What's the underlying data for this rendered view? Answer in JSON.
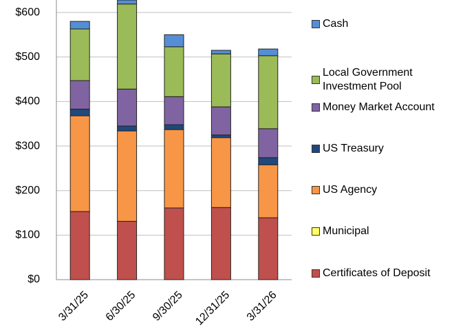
{
  "chart_data": {
    "type": "stacked_bar",
    "categories": [
      "3/31/25",
      "6/30/25",
      "9/30/25",
      "12/31/25",
      "3/31/26"
    ],
    "series": [
      {
        "name": "Certificates of Deposit",
        "color": "#c0504d",
        "values": [
          153,
          131,
          161,
          162,
          139
        ]
      },
      {
        "name": "Municipal",
        "color": "#ffff66",
        "values": [
          0,
          0,
          0,
          0,
          0
        ]
      },
      {
        "name": "US Agency",
        "color": "#f79646",
        "values": [
          215,
          203,
          176,
          157,
          119
        ]
      },
      {
        "name": "US Treasury",
        "color": "#1f497d",
        "values": [
          15,
          11,
          11,
          6,
          16
        ]
      },
      {
        "name": "Money Market Account",
        "color": "#8064a2",
        "values": [
          64,
          83,
          63,
          63,
          65
        ]
      },
      {
        "name": "Local Government Investment Pool",
        "color": "#9bbb59",
        "values": [
          116,
          191,
          112,
          119,
          164
        ]
      },
      {
        "name": "Cash",
        "color": "#558ed5",
        "values": [
          17,
          9,
          27,
          8,
          15
        ]
      }
    ],
    "ylim": [
      0,
      628
    ],
    "yticks": [
      {
        "value": 0,
        "label": "$0"
      },
      {
        "value": 100,
        "label": "$100"
      },
      {
        "value": 200,
        "label": "$200"
      },
      {
        "value": 300,
        "label": "$300"
      },
      {
        "value": 400,
        "label": "$400"
      },
      {
        "value": 500,
        "label": "$500"
      },
      {
        "value": 600,
        "label": "$600"
      }
    ],
    "grid": true
  }
}
